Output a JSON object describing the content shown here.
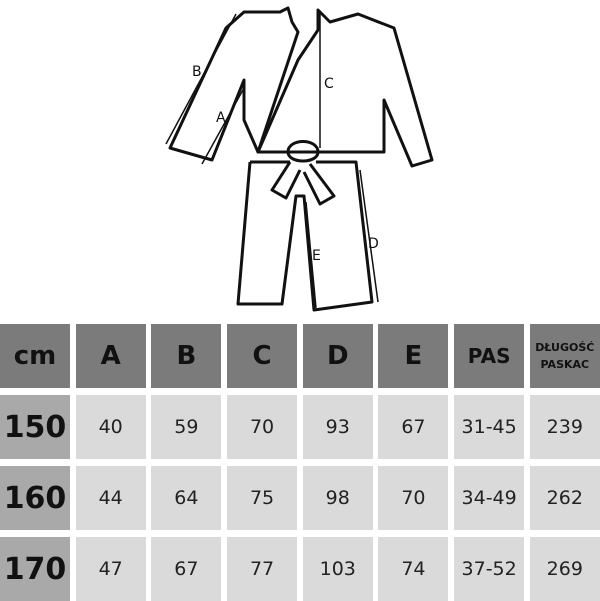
{
  "diagram": {
    "labels": [
      "A",
      "B",
      "C",
      "D",
      "E"
    ]
  },
  "table": {
    "headers": [
      "cm",
      "A",
      "B",
      "C",
      "D",
      "E",
      "PAS",
      "DŁUGOŚĆ PASKAC"
    ],
    "rows": [
      [
        "150",
        "40",
        "59",
        "70",
        "93",
        "67",
        "31-45",
        "239"
      ],
      [
        "160",
        "44",
        "64",
        "75",
        "98",
        "70",
        "34-49",
        "262"
      ],
      [
        "170",
        "47",
        "67",
        "77",
        "103",
        "74",
        "37-52",
        "269"
      ]
    ]
  }
}
